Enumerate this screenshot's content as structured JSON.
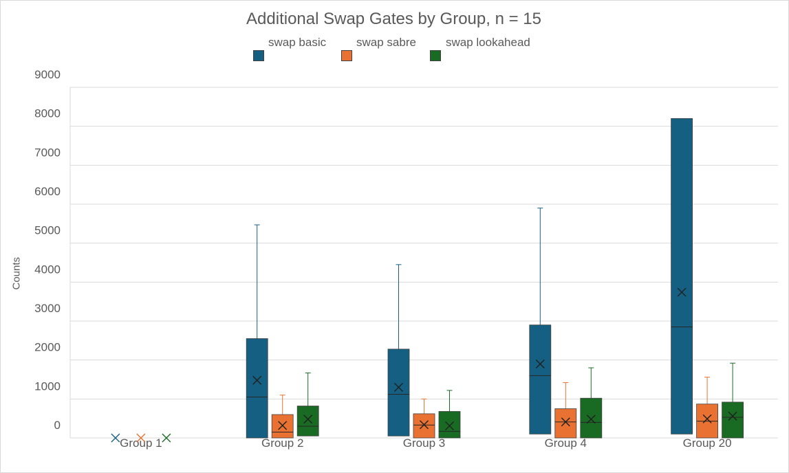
{
  "chart_data": {
    "type": "box",
    "title": "Additional Swap Gates by Group, n = 15",
    "ylabel": "Counts",
    "xlabel": "",
    "ylim": [
      0,
      9000
    ],
    "yticks": [
      0,
      1000,
      2000,
      3000,
      4000,
      5000,
      6000,
      7000,
      8000,
      9000
    ],
    "grid": true,
    "legend_position": "top",
    "categories": [
      "Group 1",
      "Group 2",
      "Group 3",
      "Group 4",
      "Group 20"
    ],
    "series": [
      {
        "name": "swap basic",
        "color": "#156082",
        "boxes": [
          {
            "min": 0,
            "q1": 0,
            "median": 0,
            "q3": 0,
            "max": 0,
            "mean": 0
          },
          {
            "min": 0,
            "q1": 0,
            "median": 1050,
            "q3": 2550,
            "max": 5470,
            "mean": 1480
          },
          {
            "min": 0,
            "q1": 50,
            "median": 1120,
            "q3": 2280,
            "max": 4450,
            "mean": 1300
          },
          {
            "min": 0,
            "q1": 100,
            "median": 1600,
            "q3": 2900,
            "max": 5900,
            "mean": 1900
          },
          {
            "min": 0,
            "q1": 100,
            "median": 2850,
            "q3": 8200,
            "max": 8200,
            "mean": 3740
          }
        ]
      },
      {
        "name": "swap sabre",
        "color": "#E97132",
        "boxes": [
          {
            "min": 0,
            "q1": 0,
            "median": 0,
            "q3": 0,
            "max": 0,
            "mean": 0
          },
          {
            "min": 0,
            "q1": 0,
            "median": 150,
            "q3": 600,
            "max": 1100,
            "mean": 320
          },
          {
            "min": 0,
            "q1": 0,
            "median": 330,
            "q3": 620,
            "max": 1000,
            "mean": 340
          },
          {
            "min": 0,
            "q1": 0,
            "median": 410,
            "q3": 750,
            "max": 1420,
            "mean": 410
          },
          {
            "min": 0,
            "q1": 0,
            "median": 430,
            "q3": 870,
            "max": 1560,
            "mean": 490
          }
        ]
      },
      {
        "name": "swap lookahead",
        "color": "#196B24",
        "boxes": [
          {
            "min": 0,
            "q1": 0,
            "median": 0,
            "q3": 0,
            "max": 0,
            "mean": 0
          },
          {
            "min": 0,
            "q1": 50,
            "median": 300,
            "q3": 820,
            "max": 1670,
            "mean": 480
          },
          {
            "min": 0,
            "q1": 0,
            "median": 170,
            "q3": 680,
            "max": 1220,
            "mean": 310
          },
          {
            "min": 0,
            "q1": 0,
            "median": 400,
            "q3": 1020,
            "max": 1800,
            "mean": 480
          },
          {
            "min": 0,
            "q1": 0,
            "median": 530,
            "q3": 920,
            "max": 1920,
            "mean": 560
          }
        ]
      }
    ]
  }
}
